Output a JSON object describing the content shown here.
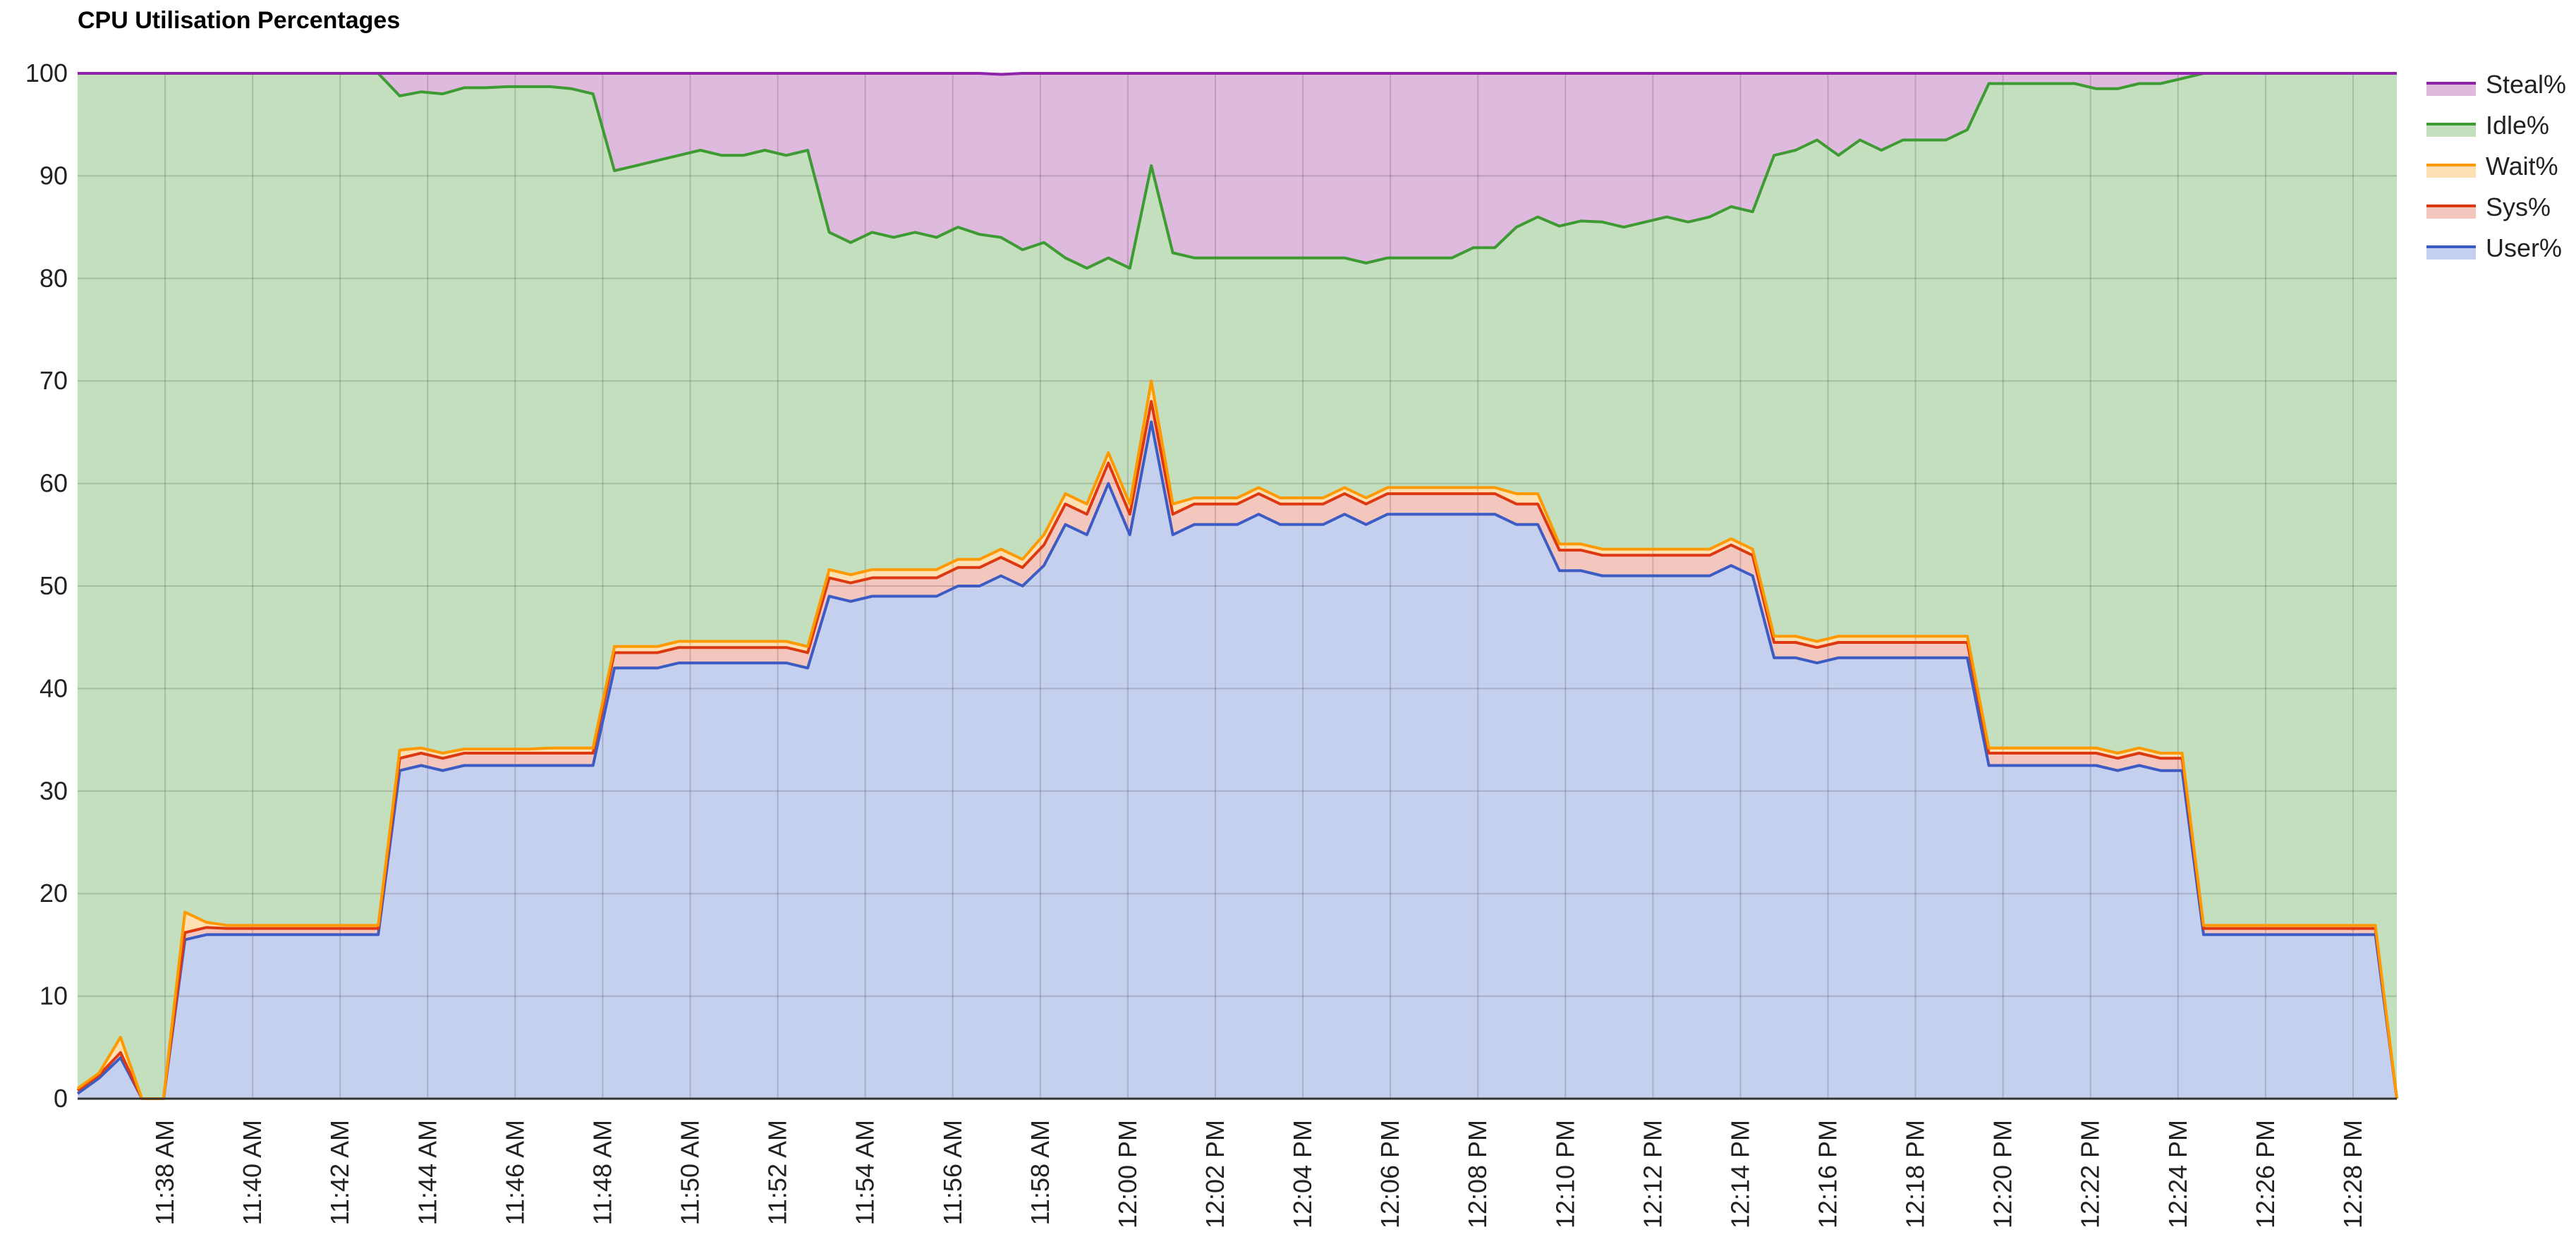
{
  "chart_data": {
    "type": "area",
    "stacked": true,
    "title": "CPU Utilisation Percentages",
    "xlabel": "",
    "ylabel": "",
    "ylim": [
      0,
      100
    ],
    "yticks": [
      0,
      10,
      20,
      30,
      40,
      50,
      60,
      70,
      80,
      90,
      100
    ],
    "x_start": "11:36 AM",
    "x_end": "12:29 PM",
    "xtick_labels": [
      "11:38 AM",
      "11:40 AM",
      "11:42 AM",
      "11:44 AM",
      "11:46 AM",
      "11:48 AM",
      "11:50 AM",
      "11:52 AM",
      "11:54 AM",
      "11:56 AM",
      "11:58 AM",
      "12:00 PM",
      "12:02 PM",
      "12:04 PM",
      "12:06 PM",
      "12:08 PM",
      "12:10 PM",
      "12:12 PM",
      "12:14 PM",
      "12:16 PM",
      "12:18 PM",
      "12:20 PM",
      "12:22 PM",
      "12:24 PM",
      "12:26 PM",
      "12:28 PM"
    ],
    "grid": true,
    "legend_position": "right",
    "x": [
      "11:36",
      "11:36",
      "11:37",
      "11:37",
      "11:38",
      "11:38",
      "11:39",
      "11:39",
      "11:40",
      "11:40",
      "11:41",
      "11:41",
      "11:42",
      "11:42",
      "11:43",
      "11:43",
      "11:44",
      "11:44",
      "11:45",
      "11:45",
      "11:46",
      "11:46",
      "11:47",
      "11:47",
      "11:48",
      "11:48",
      "11:49",
      "11:49",
      "11:50",
      "11:50",
      "11:51",
      "11:51",
      "11:52",
      "11:52",
      "11:53",
      "11:53",
      "11:54",
      "11:54",
      "11:55",
      "11:55",
      "11:56",
      "11:56",
      "11:57",
      "11:57",
      "11:58",
      "11:58",
      "11:59",
      "11:59",
      "11:59:30",
      "11:59:50",
      "12:00",
      "12:00",
      "12:01",
      "12:01",
      "12:02",
      "12:02",
      "12:03",
      "12:03",
      "12:04",
      "12:04",
      "12:05",
      "12:05",
      "12:06",
      "12:06",
      "12:07",
      "12:07",
      "12:08",
      "12:08",
      "12:09",
      "12:09",
      "12:10",
      "12:10",
      "12:11",
      "12:11",
      "12:12",
      "12:12",
      "12:13",
      "12:13",
      "12:14",
      "12:14",
      "12:15",
      "12:15",
      "12:16",
      "12:16",
      "12:17",
      "12:17",
      "12:18",
      "12:18",
      "12:19",
      "12:19",
      "12:20",
      "12:20",
      "12:21",
      "12:21",
      "12:22",
      "12:22",
      "12:23",
      "12:23",
      "12:24",
      "12:24",
      "12:25",
      "12:25",
      "12:26",
      "12:26",
      "12:27",
      "12:27",
      "12:28",
      "12:28",
      "12:29"
    ],
    "series": [
      {
        "name": "User%",
        "color": "#3c5cc4",
        "fill": "#c5cfee",
        "values": [
          0.5,
          2,
          4,
          0,
          0,
          15.5,
          16,
          16,
          16,
          16,
          16,
          16,
          16,
          16,
          16,
          32,
          32.5,
          32,
          32.5,
          32.5,
          32.5,
          32.5,
          32.5,
          32.5,
          32.5,
          42,
          42,
          42,
          42.5,
          42.5,
          42.5,
          42.5,
          42.5,
          42.5,
          42,
          49,
          48.5,
          49,
          49,
          49,
          49,
          50,
          50,
          51,
          50,
          52,
          56,
          55,
          60,
          55,
          66,
          55,
          56,
          56,
          56,
          57,
          56,
          56,
          56,
          57,
          56,
          57,
          57,
          57,
          57,
          57,
          57,
          56,
          56,
          51.5,
          51.5,
          51,
          51,
          51,
          51,
          51,
          51,
          52,
          51,
          43,
          43,
          42.5,
          43,
          43,
          43,
          43,
          43,
          43,
          43,
          32.5,
          32.5,
          32.5,
          32.5,
          32.5,
          32.5,
          32,
          32.5,
          32,
          32,
          16,
          16,
          16,
          16,
          16,
          16,
          16,
          16,
          16,
          0
        ]
      },
      {
        "name": "Sys%",
        "color": "#dc3912",
        "fill": "#f4c7be",
        "values": [
          0.3,
          0.3,
          0.5,
          0,
          0,
          0.7,
          0.7,
          0.6,
          0.6,
          0.6,
          0.6,
          0.6,
          0.6,
          0.6,
          0.6,
          1.2,
          1.2,
          1.2,
          1.2,
          1.2,
          1.2,
          1.2,
          1.2,
          1.2,
          1.2,
          1.5,
          1.5,
          1.5,
          1.5,
          1.5,
          1.5,
          1.5,
          1.5,
          1.5,
          1.5,
          1.8,
          1.8,
          1.8,
          1.8,
          1.8,
          1.8,
          1.8,
          1.8,
          1.8,
          1.8,
          2,
          2,
          2,
          2,
          2,
          2,
          2,
          2,
          2,
          2,
          2,
          2,
          2,
          2,
          2,
          2,
          2,
          2,
          2,
          2,
          2,
          2,
          2,
          2,
          2,
          2,
          2,
          2,
          2,
          2,
          2,
          2,
          2,
          2,
          1.5,
          1.5,
          1.5,
          1.5,
          1.5,
          1.5,
          1.5,
          1.5,
          1.5,
          1.5,
          1.2,
          1.2,
          1.2,
          1.2,
          1.2,
          1.2,
          1.2,
          1.2,
          1.2,
          1.2,
          0.6,
          0.6,
          0.6,
          0.6,
          0.6,
          0.6,
          0.6,
          0.6,
          0.6,
          0
        ]
      },
      {
        "name": "Wait%",
        "color": "#ff9900",
        "fill": "#ffe0b2",
        "values": [
          0.2,
          0.2,
          1.5,
          0,
          0,
          2,
          0.5,
          0.3,
          0.3,
          0.3,
          0.3,
          0.3,
          0.3,
          0.3,
          0.3,
          0.8,
          0.5,
          0.5,
          0.4,
          0.4,
          0.4,
          0.4,
          0.5,
          0.5,
          0.5,
          0.6,
          0.6,
          0.6,
          0.6,
          0.6,
          0.6,
          0.6,
          0.6,
          0.6,
          0.6,
          0.8,
          0.8,
          0.8,
          0.8,
          0.8,
          0.8,
          0.8,
          0.8,
          0.8,
          0.8,
          1,
          1,
          1,
          1,
          1,
          2,
          1,
          0.6,
          0.6,
          0.6,
          0.6,
          0.6,
          0.6,
          0.6,
          0.6,
          0.6,
          0.6,
          0.6,
          0.6,
          0.6,
          0.6,
          0.6,
          1,
          1,
          0.6,
          0.6,
          0.6,
          0.6,
          0.6,
          0.6,
          0.6,
          0.6,
          0.6,
          0.6,
          0.6,
          0.6,
          0.6,
          0.6,
          0.6,
          0.6,
          0.6,
          0.6,
          0.6,
          0.6,
          0.5,
          0.5,
          0.5,
          0.5,
          0.5,
          0.5,
          0.5,
          0.5,
          0.5,
          0.5,
          0.3,
          0.3,
          0.3,
          0.3,
          0.3,
          0.3,
          0.3,
          0.3,
          0.3,
          0
        ]
      },
      {
        "name": "Idle%",
        "color": "#3e9a32",
        "fill": "#c3dfbd",
        "values": [
          99,
          97.5,
          94,
          100,
          100,
          81.8,
          82.8,
          83.1,
          83.1,
          83.1,
          83.1,
          83.1,
          83.1,
          83.1,
          83.1,
          63.8,
          64,
          64.3,
          64.5,
          64.5,
          64.6,
          64.6,
          64.5,
          64.3,
          63.8,
          46.4,
          46.9,
          47.4,
          47.4,
          47.9,
          47.4,
          47.4,
          47.9,
          47.4,
          48.4,
          32.9,
          32.4,
          32.9,
          32.4,
          32.9,
          32.4,
          32.4,
          31.7,
          30.4,
          30.2,
          28.5,
          23,
          23,
          19,
          23,
          21,
          24.5,
          23.4,
          23.4,
          23.4,
          22.4,
          23.4,
          23.4,
          23.4,
          22.4,
          22.9,
          22.4,
          22.4,
          22.4,
          22.4,
          23.4,
          23.4,
          26,
          27,
          31,
          31.5,
          31.9,
          31.4,
          31.9,
          32.4,
          31.9,
          32.4,
          32.4,
          32.9,
          46.9,
          47.4,
          48.9,
          46.9,
          48.4,
          47.4,
          48.4,
          48.4,
          48.4,
          49.4,
          64.8,
          64.8,
          64.8,
          64.8,
          64.8,
          64.3,
          64.8,
          64.8,
          65.3,
          65.8,
          83.1,
          83.1,
          83.1,
          83.1,
          83.1,
          83.1,
          83.1,
          83.1,
          83.1,
          100
        ]
      },
      {
        "name": "Steal%",
        "color": "#8e24aa",
        "fill": "#dfbadf",
        "values": [
          0,
          0,
          0,
          0,
          0,
          0,
          0,
          0,
          0,
          0,
          0,
          0,
          0,
          0,
          0,
          2.2,
          1.8,
          2,
          1.4,
          1.4,
          1.3,
          1.3,
          1.3,
          1.5,
          2,
          9.5,
          9,
          8.5,
          8,
          7.5,
          8,
          8,
          7.5,
          8,
          7.5,
          15.5,
          16.5,
          15.5,
          16,
          15.5,
          16,
          15,
          15.7,
          15.9,
          17.4,
          16.5,
          18,
          19,
          18,
          19,
          9,
          17.5,
          18,
          18,
          18,
          18,
          18,
          18,
          18,
          18,
          18.5,
          18,
          18,
          18,
          18,
          17,
          17,
          15,
          14,
          14.9,
          14.4,
          14.5,
          15,
          14.5,
          14,
          14.5,
          14,
          13,
          13.5,
          8,
          7.5,
          6.5,
          8,
          7,
          8,
          7,
          7,
          7,
          6.5,
          1,
          1,
          1,
          1,
          1,
          1.5,
          1.5,
          1,
          1.2,
          1.2,
          0,
          0,
          0,
          0,
          0,
          0,
          0,
          0,
          0,
          0
        ]
      }
    ],
    "legend": [
      "Steal%",
      "Idle%",
      "Wait%",
      "Sys%",
      "User%"
    ]
  }
}
